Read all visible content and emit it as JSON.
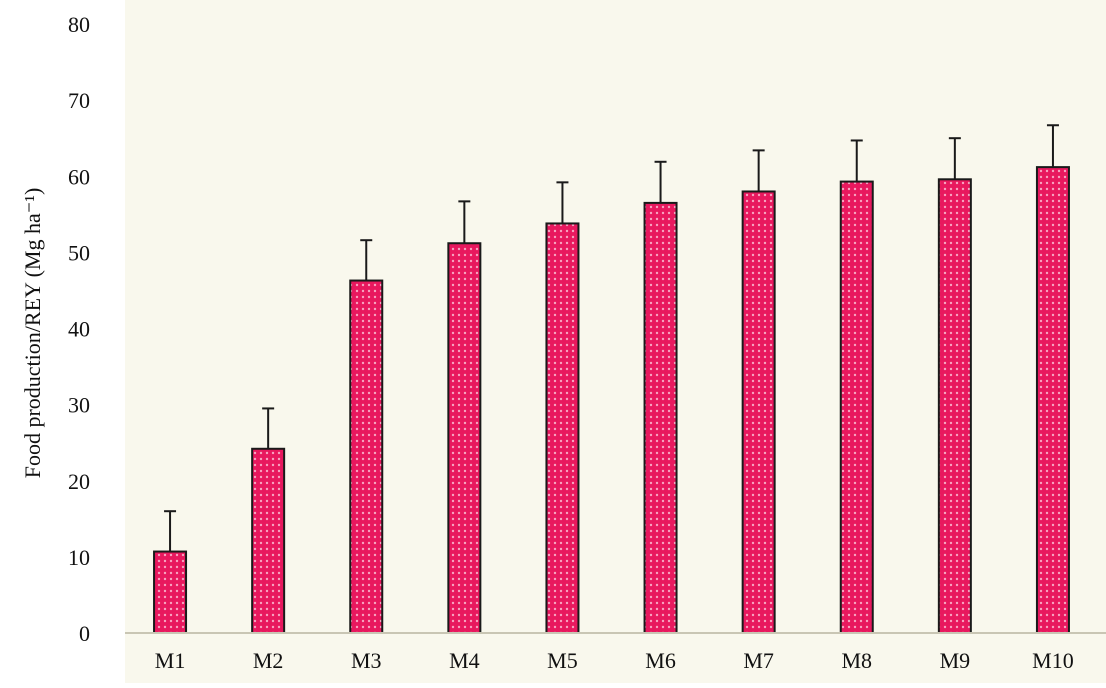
{
  "chart_data": {
    "type": "bar",
    "title": "",
    "xlabel": "",
    "ylabel": "Food production/REY (Mg ha⁻¹)",
    "categories": [
      "M1",
      "M2",
      "M3",
      "M4",
      "M5",
      "M6",
      "M7",
      "M8",
      "M9",
      "M10"
    ],
    "values": [
      10.7,
      24.2,
      46.3,
      51.2,
      53.8,
      56.5,
      58.0,
      59.3,
      59.6,
      61.2
    ],
    "error_upper": [
      5.3,
      5.3,
      5.3,
      5.5,
      5.4,
      5.4,
      5.4,
      5.4,
      5.4,
      5.5
    ],
    "ylim": [
      0,
      80
    ],
    "yticks": [
      0,
      10,
      20,
      30,
      40,
      50,
      60,
      70,
      80
    ],
    "grid": false,
    "legend": "none",
    "colors": {
      "bar": "#e8185e",
      "bar_dots": "#f7a3c0",
      "bar_edge": "#1a1a1a",
      "error_bar": "#1a1a1a",
      "plot_background": "#f9f8ed",
      "axis_line": "#c9c6b4"
    }
  }
}
